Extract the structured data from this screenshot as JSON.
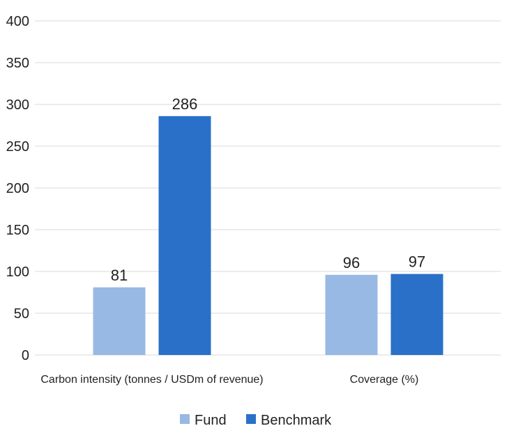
{
  "chart_data": {
    "type": "bar",
    "categories": [
      "Carbon intensity (tonnes / USDm of revenue)",
      "Coverage (%)"
    ],
    "series": [
      {
        "name": "Fund",
        "values": [
          81,
          96
        ],
        "color": "#98b9e3"
      },
      {
        "name": "Benchmark",
        "values": [
          286,
          97
        ],
        "color": "#2a70c8"
      }
    ],
    "data_labels": [
      [
        "81",
        "96"
      ],
      [
        "286",
        "97"
      ]
    ],
    "yticks": [
      "0",
      "50",
      "100",
      "150",
      "200",
      "250",
      "300",
      "350",
      "400"
    ],
    "ylim": [
      0,
      400
    ],
    "grid": true,
    "legend": "bottom"
  }
}
